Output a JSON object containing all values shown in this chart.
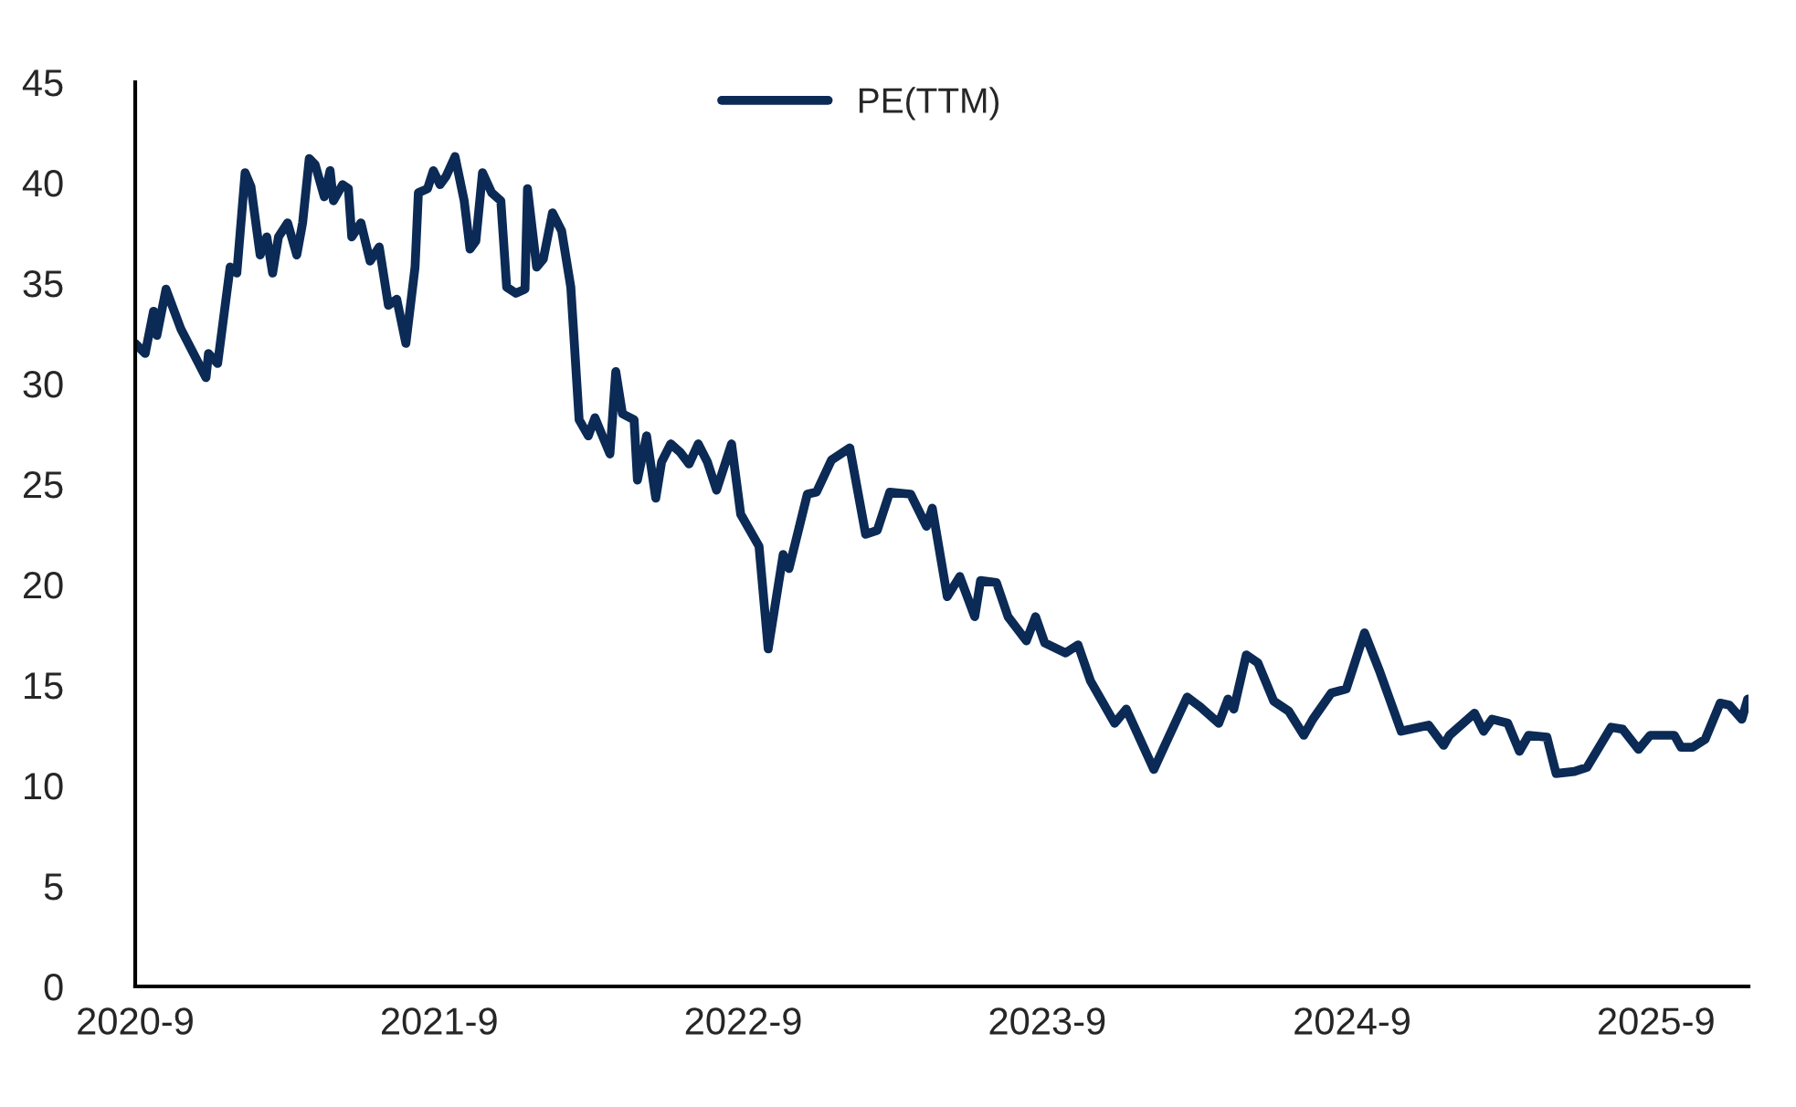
{
  "chart_data": {
    "type": "line",
    "x": [
      "2020-09-01",
      "2020-09-13",
      "2020-09-23",
      "2020-09-27",
      "2020-10-08",
      "2020-10-26",
      "2020-11-25",
      "2020-11-28",
      "2020-12-09",
      "2020-12-24",
      "2021-01-01",
      "2021-01-11",
      "2021-01-18",
      "2021-01-29",
      "2021-02-06",
      "2021-02-13",
      "2021-02-20",
      "2021-03-03",
      "2021-03-14",
      "2021-03-21",
      "2021-03-29",
      "2021-04-05",
      "2021-04-16",
      "2021-04-23",
      "2021-04-27",
      "2021-05-08",
      "2021-05-15",
      "2021-05-19",
      "2021-05-30",
      "2021-06-10",
      "2021-06-21",
      "2021-07-02",
      "2021-07-12",
      "2021-07-23",
      "2021-08-03",
      "2021-08-07",
      "2021-08-18",
      "2021-08-25",
      "2021-09-02",
      "2021-09-09",
      "2021-09-20",
      "2021-10-01",
      "2021-10-08",
      "2021-10-15",
      "2021-10-23",
      "2021-11-03",
      "2021-11-14",
      "2021-11-21",
      "2021-12-02",
      "2021-12-13",
      "2021-12-16",
      "2021-12-27",
      "2022-01-04",
      "2022-01-15",
      "2022-01-26",
      "2022-02-06",
      "2022-02-16",
      "2022-02-27",
      "2022-03-07",
      "2022-03-14",
      "2022-03-25",
      "2022-04-01",
      "2022-04-09",
      "2022-04-23",
      "2022-04-27",
      "2022-05-08",
      "2022-05-19",
      "2022-05-26",
      "2022-06-06",
      "2022-06-17",
      "2022-06-28",
      "2022-07-09",
      "2022-07-20",
      "2022-07-31",
      "2022-08-18",
      "2022-08-29",
      "2022-09-20",
      "2022-10-01",
      "2022-10-19",
      "2022-10-26",
      "2022-11-17",
      "2022-11-28",
      "2022-12-16",
      "2023-01-07",
      "2023-01-26",
      "2023-02-09",
      "2023-02-24",
      "2023-03-21",
      "2023-04-09",
      "2023-04-16",
      "2023-05-04",
      "2023-05-19",
      "2023-06-06",
      "2023-06-13",
      "2023-07-02",
      "2023-07-16",
      "2023-08-07",
      "2023-08-18",
      "2023-08-29",
      "2023-09-23",
      "2023-10-08",
      "2023-10-23",
      "2023-11-21",
      "2023-12-05",
      "2024-01-07",
      "2024-01-18",
      "2024-02-16",
      "2024-03-03",
      "2024-03-25",
      "2024-04-05",
      "2024-04-12",
      "2024-04-27",
      "2024-05-11",
      "2024-05-30",
      "2024-06-17",
      "2024-07-05",
      "2024-07-16",
      "2024-08-07",
      "2024-08-25",
      "2024-09-16",
      "2024-10-04",
      "2024-10-30",
      "2024-12-02",
      "2024-12-20",
      "2024-12-27",
      "2025-01-26",
      "2025-02-06",
      "2025-02-16",
      "2025-03-07",
      "2025-03-21",
      "2025-04-01",
      "2025-04-23",
      "2025-05-04",
      "2025-05-26",
      "2025-06-10",
      "2025-07-09",
      "2025-07-23",
      "2025-08-11",
      "2025-08-25",
      "2025-09-23",
      "2025-10-01",
      "2025-10-15",
      "2025-10-30",
      "2025-11-17",
      "2025-11-28",
      "2025-12-13",
      "2025-12-20"
    ],
    "series": [
      {
        "name": "PE(TTM)",
        "color": "#0b2a55",
        "values": [
          32.0,
          31.5,
          33.6,
          32.4,
          34.7,
          32.7,
          30.3,
          31.5,
          31.0,
          35.8,
          35.5,
          40.5,
          39.8,
          36.4,
          37.3,
          35.5,
          37.3,
          38.0,
          36.4,
          38.0,
          41.2,
          40.9,
          39.3,
          40.6,
          39.1,
          39.9,
          39.7,
          37.3,
          38.0,
          36.1,
          36.8,
          33.9,
          34.2,
          32.0,
          35.8,
          39.5,
          39.7,
          40.6,
          39.9,
          40.3,
          41.3,
          39.1,
          36.7,
          37.1,
          40.5,
          39.5,
          39.1,
          34.8,
          34.5,
          34.7,
          39.7,
          35.8,
          36.2,
          38.5,
          37.6,
          34.8,
          28.2,
          27.4,
          28.3,
          27.6,
          26.5,
          30.6,
          28.5,
          28.2,
          25.2,
          27.4,
          24.3,
          26.1,
          27.0,
          26.6,
          26.0,
          27.0,
          26.1,
          24.7,
          27.0,
          23.5,
          21.9,
          16.8,
          21.5,
          20.8,
          24.5,
          24.6,
          26.2,
          26.8,
          22.5,
          22.7,
          24.6,
          24.5,
          22.9,
          23.8,
          19.4,
          20.4,
          18.4,
          20.2,
          20.1,
          18.4,
          17.2,
          18.4,
          17.1,
          16.6,
          17.0,
          15.2,
          13.1,
          13.8,
          10.8,
          11.8,
          14.4,
          13.9,
          13.1,
          14.3,
          13.8,
          16.5,
          16.1,
          14.2,
          13.7,
          12.5,
          13.3,
          14.6,
          14.8,
          17.6,
          15.7,
          12.7,
          13.0,
          12.0,
          12.5,
          13.6,
          12.7,
          13.3,
          13.1,
          11.7,
          12.5,
          12.4,
          10.6,
          10.7,
          10.9,
          12.9,
          12.8,
          11.8,
          12.5,
          12.5,
          11.9,
          11.9,
          12.3,
          14.1,
          14.0,
          13.3,
          14.3
        ]
      }
    ],
    "xlim": [
      "2020-09-01",
      "2025-12-21"
    ],
    "xticks": [
      {
        "value": "2020-09-01",
        "label": "2020-9"
      },
      {
        "value": "2021-09-01",
        "label": "2021-9"
      },
      {
        "value": "2022-09-01",
        "label": "2022-9"
      },
      {
        "value": "2023-09-01",
        "label": "2023-9"
      },
      {
        "value": "2024-09-01",
        "label": "2024-9"
      },
      {
        "value": "2025-09-01",
        "label": "2025-9"
      }
    ],
    "ylim": [
      0,
      45
    ],
    "yticks": [
      0,
      5,
      10,
      15,
      20,
      25,
      30,
      35,
      40,
      45
    ],
    "legend": "top",
    "grid": false,
    "marker": "none",
    "line_style": "solid"
  }
}
